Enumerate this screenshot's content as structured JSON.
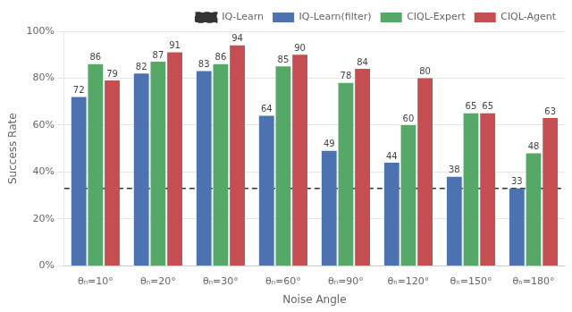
{
  "chart_data": {
    "type": "bar",
    "categories": [
      "θₙ=10°",
      "θₙ=20°",
      "θₙ=30°",
      "θₙ=60°",
      "θₙ=90°",
      "θₙ=120°",
      "θₙ=150°",
      "θₙ=180°"
    ],
    "series": [
      {
        "name": "IQ-Learn(filter)",
        "color": "#4c72b0",
        "values": [
          72,
          82,
          83,
          64,
          49,
          44,
          38,
          33
        ]
      },
      {
        "name": "CIQL-Expert",
        "color": "#55a868",
        "values": [
          86,
          87,
          86,
          85,
          78,
          60,
          65,
          48
        ]
      },
      {
        "name": "CIQL-Agent",
        "color": "#c44e52",
        "values": [
          79,
          91,
          94,
          90,
          84,
          80,
          65,
          63
        ]
      }
    ],
    "reference_lines": [
      {
        "name": "IQ-Learn",
        "value": 33,
        "color": "#333333",
        "line_style": "dashed"
      }
    ],
    "xlabel": "Noise Angle",
    "ylabel": "Success Rate",
    "ylim": [
      0,
      100
    ],
    "yticks": [
      {
        "value": 0,
        "label": "0%"
      },
      {
        "value": 20,
        "label": "20%"
      },
      {
        "value": 40,
        "label": "40%"
      },
      {
        "value": 60,
        "label": "60%"
      },
      {
        "value": 80,
        "label": "80%"
      },
      {
        "value": 100,
        "label": "100%"
      }
    ],
    "grid": true,
    "legend": "upper right",
    "data_labels": true
  }
}
